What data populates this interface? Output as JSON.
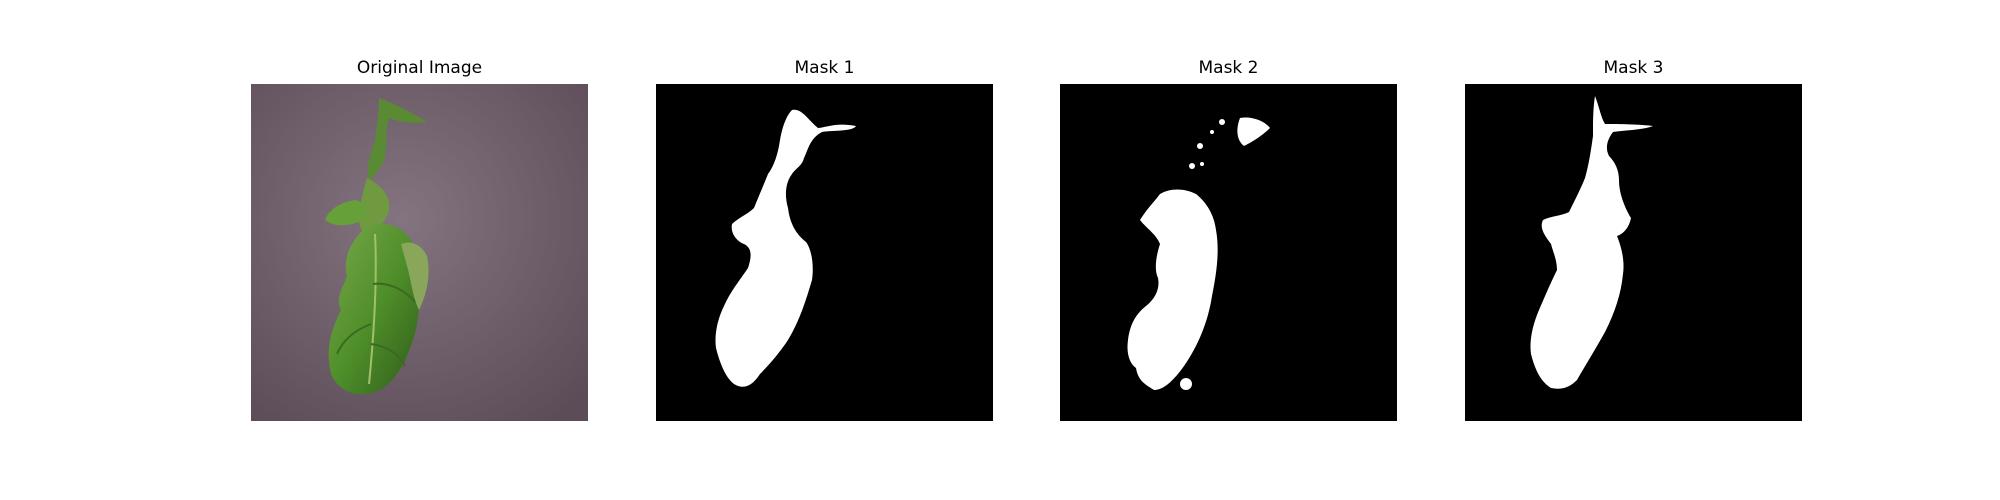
{
  "panels": [
    {
      "title": "Original Image",
      "kind": "photo",
      "description": "green-leaf-on-purple-background"
    },
    {
      "title": "Mask 1",
      "kind": "mask"
    },
    {
      "title": "Mask 2",
      "kind": "mask"
    },
    {
      "title": "Mask 3",
      "kind": "mask"
    }
  ],
  "colors": {
    "background": "#ffffff",
    "mask_bg": "#000000",
    "mask_fg": "#ffffff",
    "photo_bg": "#7a6a76",
    "leaf": "#4f8f2a",
    "leaf_dark": "#2f5a1a",
    "leaf_light": "#7aa84a"
  }
}
